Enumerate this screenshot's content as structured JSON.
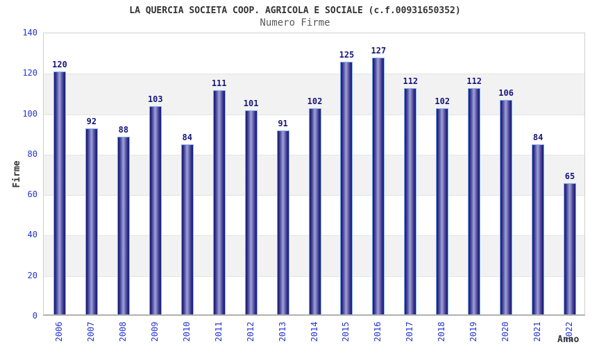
{
  "header": {
    "title": "LA QUERCIA SOCIETA COOP. AGRICOLA E SOCIALE (c.f.00931650352)",
    "subtitle": "Numero Firme"
  },
  "colors": {
    "tick_label": "#2233cc",
    "value_label": "#16167a",
    "title_text": "#333333",
    "subtitle_text": "#595959",
    "bar_dark": "#17176f",
    "bar_light": "#a2a2d2",
    "bar_border": "#7fb0f0",
    "band_gray": "#f2f2f2",
    "plot_border": "#cfcfcf"
  },
  "chart_data": {
    "type": "bar",
    "title": "LA QUERCIA SOCIETA COOP. AGRICOLA E SOCIALE (c.f.00931650352)",
    "subtitle": "Numero Firme",
    "xlabel": "Anno",
    "ylabel": "Firme",
    "categories": [
      "2006",
      "2007",
      "2008",
      "2009",
      "2010",
      "2011",
      "2012",
      "2013",
      "2014",
      "2015",
      "2016",
      "2017",
      "2018",
      "2019",
      "2020",
      "2021",
      "2022"
    ],
    "values": [
      120,
      92,
      88,
      103,
      84,
      111,
      101,
      91,
      102,
      125,
      127,
      112,
      102,
      112,
      106,
      84,
      65
    ],
    "ylim": [
      0,
      140
    ],
    "ytick_step": 20,
    "grid": "horizontal-bands-alternating",
    "legend": "none",
    "bar_value_labels": true
  }
}
